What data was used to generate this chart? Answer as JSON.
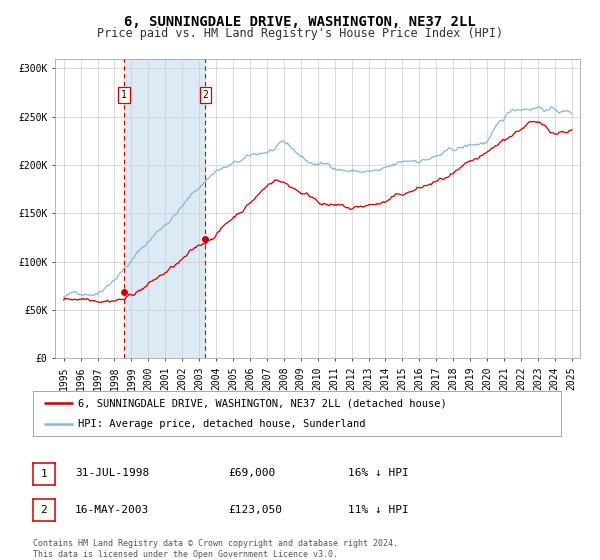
{
  "title": "6, SUNNINGDALE DRIVE, WASHINGTON, NE37 2LL",
  "subtitle": "Price paid vs. HM Land Registry's House Price Index (HPI)",
  "background_color": "#ffffff",
  "plot_bg_color": "#ffffff",
  "grid_color": "#cccccc",
  "hpi_color": "#87b8d8",
  "price_color": "#cc0000",
  "shade_color": "#dceaf5",
  "transaction1": {
    "date_num": 1998.58,
    "price": 69000,
    "label": "1"
  },
  "transaction2": {
    "date_num": 2003.37,
    "price": 123050,
    "label": "2"
  },
  "ylim": [
    0,
    310000
  ],
  "xlim": [
    1994.5,
    2025.5
  ],
  "yticks": [
    0,
    50000,
    100000,
    150000,
    200000,
    250000,
    300000
  ],
  "ytick_labels": [
    "£0",
    "£50K",
    "£100K",
    "£150K",
    "£200K",
    "£250K",
    "£300K"
  ],
  "xticks": [
    1995,
    1996,
    1997,
    1998,
    1999,
    2000,
    2001,
    2002,
    2003,
    2004,
    2005,
    2006,
    2007,
    2008,
    2009,
    2010,
    2011,
    2012,
    2013,
    2014,
    2015,
    2016,
    2017,
    2018,
    2019,
    2020,
    2021,
    2022,
    2023,
    2024,
    2025
  ],
  "legend_entries": [
    {
      "label": "6, SUNNINGDALE DRIVE, WASHINGTON, NE37 2LL (detached house)",
      "color": "#cc0000"
    },
    {
      "label": "HPI: Average price, detached house, Sunderland",
      "color": "#87b8d8"
    }
  ],
  "table_rows": [
    {
      "num": "1",
      "date": "31-JUL-1998",
      "price": "£69,000",
      "pct": "16% ↓ HPI"
    },
    {
      "num": "2",
      "date": "16-MAY-2003",
      "price": "£123,050",
      "pct": "11% ↓ HPI"
    }
  ],
  "footer": "Contains HM Land Registry data © Crown copyright and database right 2024.\nThis data is licensed under the Open Government Licence v3.0.",
  "title_fontsize": 10,
  "subtitle_fontsize": 8.5,
  "tick_fontsize": 7,
  "legend_fontsize": 7.5,
  "table_fontsize": 8,
  "footer_fontsize": 6
}
